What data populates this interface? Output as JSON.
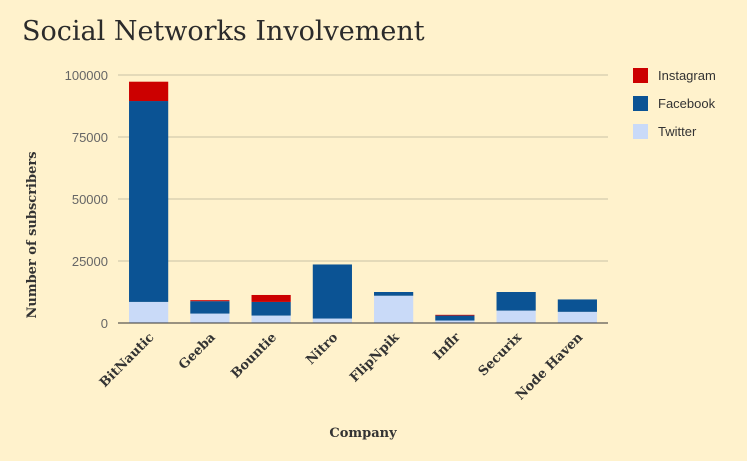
{
  "chart_data": {
    "type": "bar",
    "stacked": true,
    "title": "Social Networks Involvement",
    "xlabel": "Company",
    "ylabel": "Number of subscribers",
    "ylim": [
      0,
      100000
    ],
    "yticks": [
      0,
      25000,
      50000,
      75000,
      100000
    ],
    "yticklabels": [
      "0",
      "25000",
      "50000",
      "75000",
      "100000"
    ],
    "grid": true,
    "legend_position": "right",
    "categories": [
      "BitNautic",
      "Geeba",
      "Bountie",
      "Nitro",
      "FlipNpik",
      "Inflr",
      "Securix",
      "Node Haven"
    ],
    "series": [
      {
        "name": "Twitter",
        "color": "#c9daf8",
        "values": [
          8500,
          3800,
          3000,
          1800,
          11000,
          1000,
          5000,
          4500
        ]
      },
      {
        "name": "Facebook",
        "color": "#0b5394",
        "values": [
          81000,
          5000,
          5500,
          21800,
          1500,
          2000,
          7500,
          5000
        ]
      },
      {
        "name": "Instagram",
        "color": "#cc0000",
        "values": [
          7800,
          400,
          2800,
          0,
          0,
          300,
          0,
          0
        ]
      }
    ],
    "legend_order": [
      "Instagram",
      "Facebook",
      "Twitter"
    ]
  }
}
